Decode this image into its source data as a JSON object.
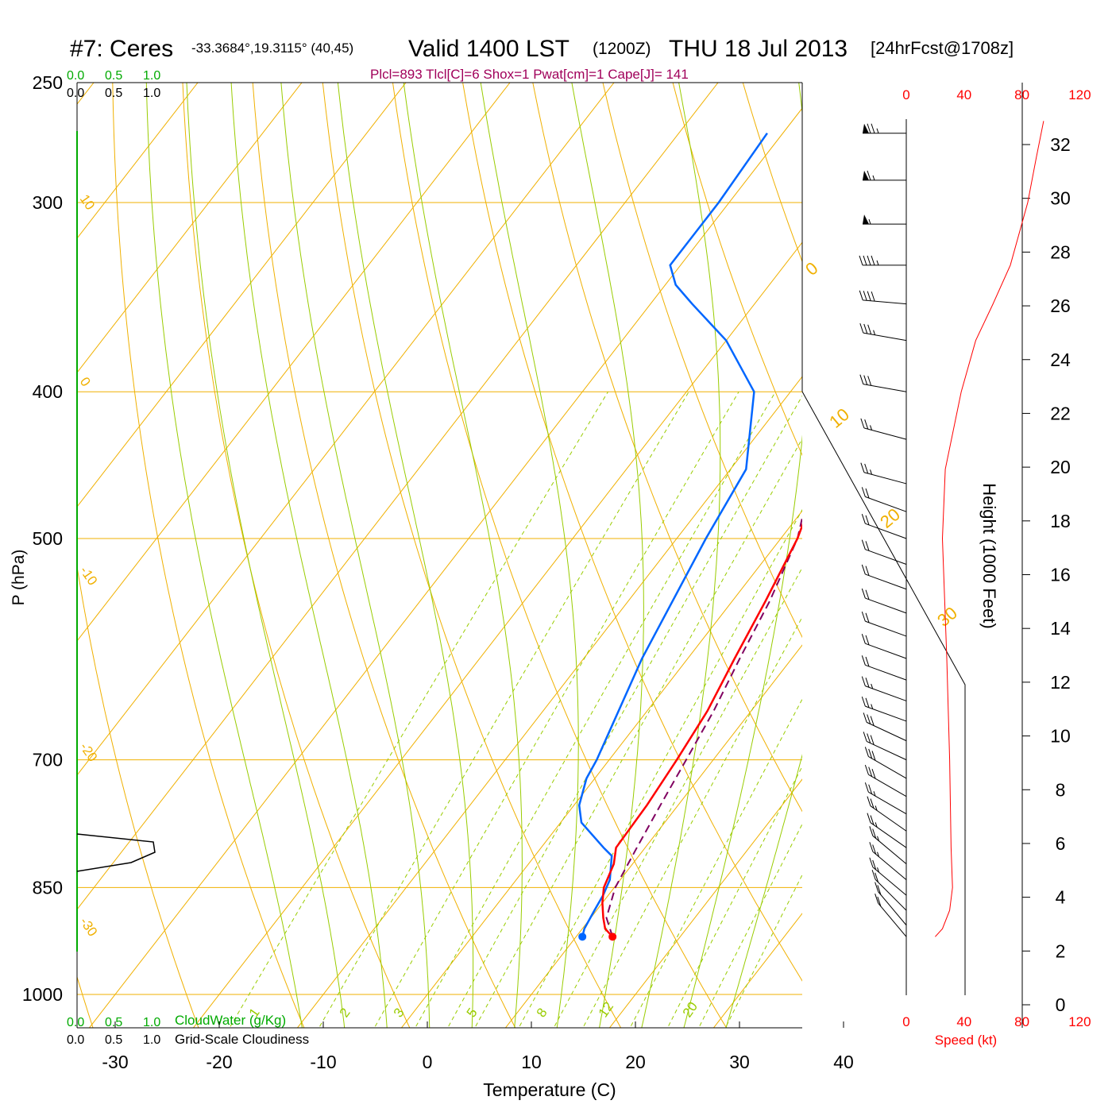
{
  "header": {
    "station": "#7: Ceres",
    "coords": "-33.3684°,19.3115° (40,45)",
    "valid": "Valid 1400 LST",
    "zulu": "(1200Z)",
    "date": "THU 18 Jul 2013",
    "forecast": "[24hrFcst@1708z]",
    "indices": "Plcl=893 Tlcl[C]=6 Shox=1 Pwat[cm]=1 Cape[J]= 141"
  },
  "colors": {
    "temperature": "#ff0000",
    "dewpoint": "#0066ff",
    "parcel": "#800060",
    "isotherm": "#f0b000",
    "dry_adiabat": "#f0b000",
    "moist_adiabat": "#99cc00",
    "mixing_ratio": "#99cc00",
    "isobar": "#f0b000",
    "cloud": "#00aa00",
    "speed": "#ff0000"
  },
  "chart_data": {
    "type": "skew-t",
    "xlabel": "Temperature (C)",
    "ylabel": "P (hPa)",
    "y2label": "Height (1000 Feet)",
    "x_ticks": [
      "-30",
      "-20",
      "-10",
      "0",
      "10",
      "20",
      "30",
      "40"
    ],
    "x_tick_values": [
      -30,
      -20,
      -10,
      0,
      10,
      20,
      30,
      40
    ],
    "p_ticks": [
      "250",
      "300",
      "400",
      "500",
      "700",
      "850",
      "1000"
    ],
    "p_tick_values": [
      250,
      300,
      400,
      500,
      700,
      850,
      1000
    ],
    "height_ticks": [
      "0",
      "2",
      "4",
      "6",
      "8",
      "10",
      "12",
      "14",
      "16",
      "18",
      "20",
      "22",
      "24",
      "26",
      "28",
      "30",
      "32"
    ],
    "isotherm_labels": [
      "10",
      "0",
      "-10",
      "-20",
      "-30"
    ],
    "isotherm_label_values": [
      10,
      0,
      -10,
      -20,
      -30
    ],
    "adiabat_labels": [
      "0",
      "10",
      "20",
      "30"
    ],
    "adiabat_label_values": [
      0,
      10,
      20,
      30
    ],
    "mixing_labels": [
      "1",
      "2",
      "3",
      "5",
      "8",
      "12",
      "20"
    ],
    "mixing_label_values": [
      1,
      2,
      3,
      5,
      8,
      12,
      20
    ],
    "temperature": {
      "p": [
        916,
        905,
        890,
        870,
        850,
        820,
        800,
        750,
        700,
        650,
        600,
        550,
        500,
        475,
        450,
        420,
        400,
        370,
        350,
        330,
        300,
        290,
        270
      ],
      "t": [
        13.5,
        12.2,
        11.2,
        10.0,
        9.0,
        8.2,
        7.2,
        7.0,
        6.5,
        5.8,
        4.5,
        3.2,
        1.6,
        0.3,
        -0.6,
        -0.8,
        0,
        2,
        4,
        6,
        8.2,
        8.5,
        8.6
      ]
    },
    "dewpoint": {
      "p": [
        916,
        905,
        880,
        860,
        840,
        810,
        800,
        770,
        750,
        720,
        700,
        680,
        600,
        500,
        450,
        400,
        370,
        350,
        340,
        330,
        300,
        270
      ],
      "t": [
        10.6,
        10.2,
        9.8,
        9.5,
        9.0,
        7.4,
        6.0,
        2.0,
        0.5,
        -0.8,
        -1.2,
        -1.8,
        -4.4,
        -7.2,
        -8.5,
        -13.5,
        -20,
        -26,
        -29,
        -31,
        -31,
        -31.5
      ]
    },
    "parcel": {
      "p": [
        916,
        890,
        850,
        800,
        750,
        700,
        650,
        600,
        550,
        500,
        480
      ],
      "t": [
        13.5,
        11.5,
        10.1,
        9.2,
        8.3,
        7.4,
        6.4,
        5.0,
        3.6,
        1.6,
        0.2
      ]
    },
    "cloud_labels": [
      "0.0",
      "0.5",
      "1.0"
    ],
    "cloud_water_label": "CloudWater (g/Kg)",
    "cloudiness_label": "Grid-Scale Cloudiness",
    "speed_ticks": [
      "0",
      "40",
      "80",
      "120"
    ],
    "speed_tick_values": [
      0,
      40,
      80,
      120
    ],
    "speed_label": "Speed (kt)",
    "speed_profile": {
      "p": [
        916,
        905,
        880,
        850,
        800,
        700,
        600,
        500,
        450,
        400,
        370,
        350,
        330,
        300,
        280,
        265
      ],
      "v": [
        20,
        25,
        30,
        32,
        31,
        30,
        28,
        25,
        27,
        38,
        48,
        60,
        72,
        84,
        90,
        95
      ]
    },
    "winds": {
      "p": [
        270,
        290,
        310,
        330,
        350,
        370,
        400,
        430,
        460,
        480,
        500,
        520,
        540,
        560,
        580,
        600,
        620,
        640,
        660,
        680,
        700,
        720,
        740,
        760,
        780,
        800,
        820,
        840,
        860,
        880,
        900,
        916
      ],
      "speed": [
        75,
        65,
        55,
        45,
        40,
        35,
        30,
        28,
        25,
        22,
        20,
        20,
        20,
        20,
        22,
        22,
        24,
        26,
        28,
        30,
        30,
        30,
        30,
        28,
        26,
        25,
        25,
        25,
        25,
        22,
        22,
        20
      ],
      "dir": [
        270,
        270,
        270,
        270,
        275,
        280,
        280,
        285,
        285,
        290,
        290,
        290,
        290,
        290,
        290,
        290,
        290,
        290,
        290,
        295,
        295,
        300,
        300,
        300,
        305,
        305,
        310,
        310,
        310,
        315,
        320,
        320
      ]
    }
  }
}
